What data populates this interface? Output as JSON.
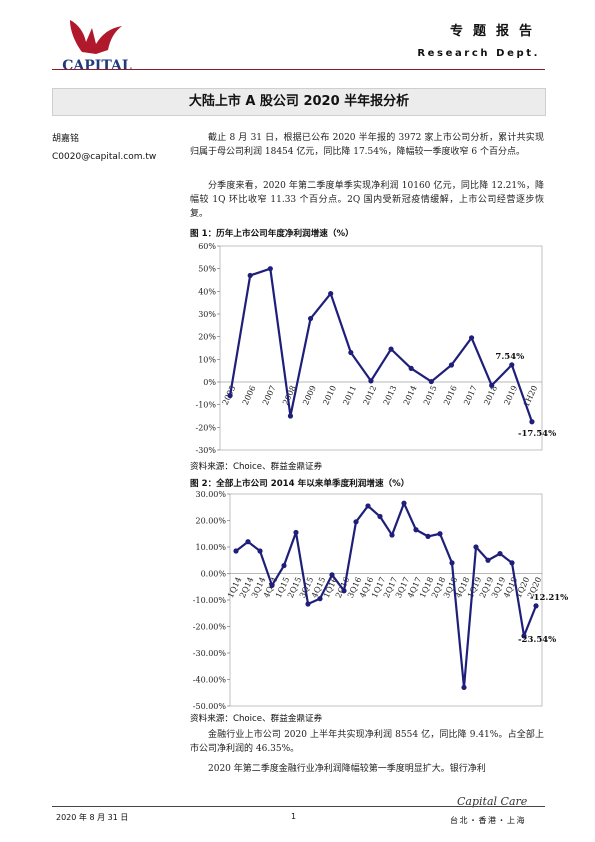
{
  "header": {
    "logo_text": "CAPITAL",
    "title": "专题报告",
    "dept": "Research Dept."
  },
  "report": {
    "title": "大陆上市 A 股公司 2020 半年报分析",
    "author": "胡嘉铭",
    "email": "C0020@capital.com.tw"
  },
  "paragraphs": [
    "截止 8 月 31 日，根据已公布 2020 半年报的 3972 家上市公司分析，累计共实现归属于母公司利润 18454 亿元，同比降 17.54%，降幅较一季度收窄 6 个百分点。",
    "分季度来看，2020 年第二季度单季实现净利润 10160 亿元，同比降 12.21%，降幅较 1Q 环比收窄 11.33 个百分点。2Q 国内受新冠疫情缓解，上市公司经营逐步恢复。",
    "金融行业上市公司 2020 上半年共实现净利润 8554 亿，同比降 9.41%。占全部上市公司净利润的 46.35%。",
    "2020 年第二季度金融行业净利润降幅较第一季度明显扩大。银行净利"
  ],
  "figures": [
    {
      "title": "图 1：历年上市公司年度净利润增速（%）",
      "source": "资料来源：Choice、群益金鼎证券"
    },
    {
      "title": "图 2：全部上市公司 2014 年以来单季度利润增速（%）",
      "source": "资料来源：Choice、群益金鼎证券"
    }
  ],
  "chart_data": [
    {
      "type": "line",
      "title": "图 1：历年上市公司年度净利润增速（%）",
      "categories": [
        "2005",
        "2006",
        "2007",
        "2008",
        "2009",
        "2010",
        "2011",
        "2012",
        "2013",
        "2014",
        "2015",
        "2016",
        "2017",
        "2018",
        "2019",
        "1H20"
      ],
      "series": [
        {
          "values": [
            -6,
            47,
            50,
            -15,
            28,
            39,
            13,
            0.5,
            14.5,
            6,
            0.2,
            7.5,
            19.5,
            -1.5,
            7.54,
            -17.54
          ]
        }
      ],
      "ylim": [
        -30,
        60
      ],
      "yticks": [
        -30,
        -20,
        -10,
        0,
        10,
        20,
        30,
        40,
        50,
        60
      ],
      "ytick_labels": [
        "-30%",
        "-20%",
        "-10%",
        "0%",
        "10%",
        "20%",
        "30%",
        "40%",
        "50%",
        "60%"
      ],
      "annotations": [
        {
          "index": 14,
          "text": "7.54%"
        },
        {
          "index": 15,
          "text": "-17.54%"
        }
      ],
      "color": "#1f1f7a"
    },
    {
      "type": "line",
      "title": "图 2：全部上市公司 2014 年以来单季度利润增速（%）",
      "categories": [
        "1Q14",
        "2Q14",
        "3Q14",
        "4Q14",
        "1Q15",
        "2Q15",
        "3Q15",
        "4Q15",
        "1Q16",
        "2Q16",
        "3Q16",
        "4Q16",
        "1Q17",
        "2Q17",
        "3Q17",
        "4Q17",
        "1Q18",
        "2Q18",
        "3Q18",
        "4Q18",
        "1Q19",
        "2Q19",
        "3Q19",
        "4Q19",
        "1Q20",
        "2Q20"
      ],
      "series": [
        {
          "values": [
            8.5,
            12,
            8.5,
            -4.5,
            3,
            15.5,
            -11.5,
            -9.5,
            -0.5,
            -6.5,
            19.5,
            25.5,
            21.5,
            14.5,
            26.5,
            16.5,
            14,
            15,
            4,
            -43,
            10,
            5,
            7.5,
            4,
            -23.54,
            -12.21
          ]
        }
      ],
      "ylim": [
        -50,
        30
      ],
      "yticks": [
        -50,
        -40,
        -30,
        -20,
        -10,
        0,
        10,
        20,
        30
      ],
      "ytick_labels": [
        "-50.00%",
        "-40.00%",
        "-30.00%",
        "-20.00%",
        "-10.00%",
        "0.00%",
        "10.00%",
        "20.00%",
        "30.00%"
      ],
      "annotations": [
        {
          "index": 25,
          "text": "-12.21%"
        },
        {
          "index": 24,
          "text": "-23.54%"
        }
      ],
      "color": "#1f1f7a"
    }
  ],
  "footer": {
    "date": "2020 年 8 月 31 日",
    "page": "1",
    "brand": "Capital Care",
    "cities": "台北・香港・上海"
  }
}
